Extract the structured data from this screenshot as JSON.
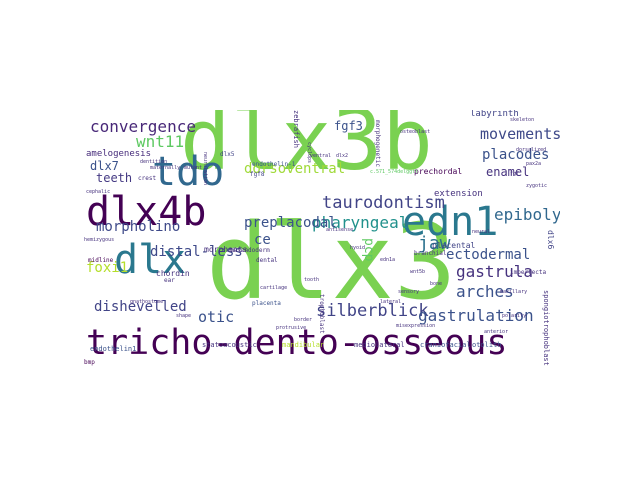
{
  "cloud": {
    "words": [
      {
        "text": "dlx3",
        "color": "#7ad151"
      },
      {
        "text": "dlx3b",
        "color": "#7ad151"
      },
      {
        "text": "tricho-dento-osseous",
        "color": "#440154"
      },
      {
        "text": "dlx4b",
        "color": "#440154"
      },
      {
        "text": "edn1",
        "color": "#2a788e"
      },
      {
        "text": "tdo",
        "color": "#31688e"
      },
      {
        "text": "dlx",
        "color": "#2a788e"
      },
      {
        "text": "taurodontism",
        "color": "#414487"
      },
      {
        "text": "silberblick",
        "color": "#414487"
      },
      {
        "text": "gastrulation",
        "color": "#3b528b"
      },
      {
        "text": "gastrula",
        "color": "#46327e"
      },
      {
        "text": "convergence",
        "color": "#482878"
      },
      {
        "text": "movements",
        "color": "#3e4989"
      },
      {
        "text": "placodes",
        "color": "#3b528b"
      },
      {
        "text": "pharyngeal",
        "color": "#21918c"
      },
      {
        "text": "dorsoventral",
        "color": "#a0da39"
      },
      {
        "text": "epiboly",
        "color": "#31688e"
      },
      {
        "text": "arches",
        "color": "#3b528b"
      },
      {
        "text": "dishevelled",
        "color": "#414487"
      },
      {
        "text": "jaw",
        "color": "#2c728e"
      },
      {
        "text": "wnt11",
        "color": "#5ec962"
      },
      {
        "text": "otic",
        "color": "#3b528b"
      },
      {
        "text": "ectodermal",
        "color": "#3b528b"
      },
      {
        "text": "morpholino",
        "color": "#3e4989"
      },
      {
        "text": "distal-less",
        "color": "#3e4989"
      },
      {
        "text": "foxi1",
        "color": "#b5de2b"
      },
      {
        "text": "teeth",
        "color": "#443983"
      },
      {
        "text": "enamel",
        "color": "#46327e"
      },
      {
        "text": "preplacodal",
        "color": "#3b528b"
      },
      {
        "text": "ce",
        "color": "#3b528b"
      },
      {
        "text": "fgf3",
        "color": "#3b528b"
      },
      {
        "text": "dlx7",
        "color": "#3b528b"
      },
      {
        "text": "pcp",
        "color": "#5ec962"
      },
      {
        "text": "labyrinth",
        "color": "#414487"
      },
      {
        "text": "amelogenesis",
        "color": "#472d7b"
      },
      {
        "text": "prechordal",
        "color": "#440154"
      },
      {
        "text": "extension",
        "color": "#46327e"
      },
      {
        "text": "chordin",
        "color": "#46327e"
      },
      {
        "text": "morphants",
        "color": "#46327e"
      },
      {
        "text": "placental",
        "color": "#414487"
      },
      {
        "text": "placenta",
        "color": "#3b528b"
      },
      {
        "text": "trophoblast",
        "color": "#46327e"
      },
      {
        "text": "mesendoderm",
        "color": "#46327e"
      },
      {
        "text": "dental",
        "color": "#46327e"
      },
      {
        "text": "branchial",
        "color": "#46327e"
      },
      {
        "text": "zebrafish",
        "color": "#46327e"
      },
      {
        "text": "statoacoustic",
        "color": "#46327e"
      },
      {
        "text": "mandibular",
        "color": "#b5de2b"
      },
      {
        "text": "mediolateral",
        "color": "#46327e"
      },
      {
        "text": "craniofacial",
        "color": "#3b528b"
      },
      {
        "text": "otolith",
        "color": "#3b528b"
      },
      {
        "text": "endothelin1",
        "color": "#3b528b"
      },
      {
        "text": "endothelin-1",
        "color": "#3b528b"
      },
      {
        "text": "dlx5",
        "color": "#414487"
      },
      {
        "text": "fgf8",
        "color": "#414487"
      },
      {
        "text": "dlx6",
        "color": "#414487"
      },
      {
        "text": "imperfecta",
        "color": "#46327e"
      },
      {
        "text": "ear",
        "color": "#46327e"
      },
      {
        "text": "midline",
        "color": "#440154"
      },
      {
        "text": "bmp",
        "color": "#440154"
      },
      {
        "text": "crest",
        "color": "#46327e"
      },
      {
        "text": "cephalic",
        "color": "#46327e"
      },
      {
        "text": "polarity",
        "color": "#46327e"
      },
      {
        "text": "neurulation",
        "color": "#46327e"
      },
      {
        "text": "maxillary",
        "color": "#46327e"
      },
      {
        "text": "misexpression",
        "color": "#46327e"
      },
      {
        "text": "morphogenetic",
        "color": "#46327e"
      },
      {
        "text": "spongiotrophoblast",
        "color": "#46327e"
      },
      {
        "text": "c.571_574delggtt",
        "color": "#5ec962"
      },
      {
        "text": "wnt5b",
        "color": "#46327e"
      },
      {
        "text": "edn1a",
        "color": "#46327e"
      },
      {
        "text": "fgf",
        "color": "#46327e"
      },
      {
        "text": "pax2a",
        "color": "#46327e"
      },
      {
        "text": "skeleton",
        "color": "#46327e"
      },
      {
        "text": "dorsalized",
        "color": "#46327e"
      },
      {
        "text": "border",
        "color": "#46327e"
      },
      {
        "text": "protrusive",
        "color": "#46327e"
      },
      {
        "text": "cyclops",
        "color": "#46327e"
      },
      {
        "text": "gnathostome",
        "color": "#46327e"
      },
      {
        "text": "hemizygous",
        "color": "#46327e"
      },
      {
        "text": "maternally",
        "color": "#46327e"
      },
      {
        "text": "anterior",
        "color": "#46327e"
      },
      {
        "text": "dentition",
        "color": "#46327e"
      },
      {
        "text": "antisense",
        "color": "#46327e"
      },
      {
        "text": "mutant",
        "color": "#46327e"
      },
      {
        "text": "shape",
        "color": "#46327e"
      },
      {
        "text": "ventral",
        "color": "#46327e"
      },
      {
        "text": "sensory",
        "color": "#46327e"
      },
      {
        "text": "lateral",
        "color": "#46327e"
      },
      {
        "text": "dlx2",
        "color": "#46327e"
      },
      {
        "text": "zygotic",
        "color": "#46327e"
      },
      {
        "text": "cartilage",
        "color": "#46327e"
      },
      {
        "text": "osteoblast",
        "color": "#46327e"
      },
      {
        "text": "hyoid",
        "color": "#46327e"
      },
      {
        "text": "neural",
        "color": "#46327e"
      },
      {
        "text": "tooth",
        "color": "#46327e"
      },
      {
        "text": "bone",
        "color": "#46327e"
      },
      {
        "text": "embryo",
        "color": "#46327e"
      }
    ]
  }
}
